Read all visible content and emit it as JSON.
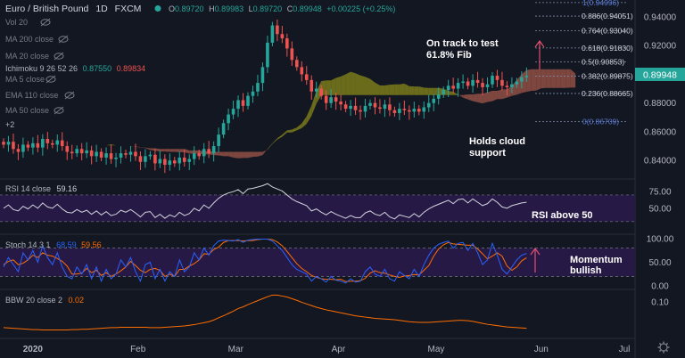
{
  "header": {
    "symbol": "Euro / British Pound",
    "interval": "1D",
    "exchange": "FXCM",
    "o_label": "O",
    "o": "0.89720",
    "h_label": "H",
    "h": "0.89983",
    "l_label": "L",
    "l": "0.89720",
    "c_label": "C",
    "c": "0.89948",
    "change": "+0.00225 (+0.25%)"
  },
  "indicators": {
    "vol": "Vol 20",
    "ma200": "MA 200 close",
    "ma20": "MA 20 close",
    "ichimoku": "Ichimoku 9 26 52 26",
    "ichimoku_v1": "0.87550",
    "ichimoku_v2": "0.89834",
    "ma5": "MA 5 close",
    "ema110": "EMA 110 close",
    "ma50": "MA 50 close",
    "collapse": "+2"
  },
  "annotations": {
    "fib_line1": "On track to test",
    "fib_line2": "61.8% Fib",
    "cloud_line1": "Holds cloud",
    "cloud_line2": "support",
    "rsi_note": "RSI above 50",
    "stoch_line1": "Momentum",
    "stoch_line2": "bullish"
  },
  "colors": {
    "background": "#131722",
    "up": "#26a69a",
    "down": "#ef5350",
    "cloud_bull": "#8a8a1a",
    "cloud_bear": "#a2574a",
    "rsi_fill": "#2a1a4a",
    "fib": "#7d8ba5",
    "arrow": "#e05070",
    "price_tag": "#26a69a"
  },
  "chart_data": [
    {
      "type": "candlestick",
      "title": "",
      "ylim": [
        0.8302,
        0.948
      ],
      "y_ticks": [
        "0.94000",
        "0.92000",
        "0.90000",
        "0.88000",
        "0.86000",
        "0.84000"
      ],
      "x_ticks": [
        "2020",
        "Feb",
        "Mar",
        "Apr",
        "May",
        "Jun",
        "Jul"
      ],
      "last_price": "0.89948",
      "close_series": [
        0.851,
        0.853,
        0.848,
        0.846,
        0.851,
        0.849,
        0.852,
        0.849,
        0.855,
        0.852,
        0.851,
        0.854,
        0.85,
        0.846,
        0.845,
        0.848,
        0.845,
        0.847,
        0.843,
        0.846,
        0.842,
        0.845,
        0.841,
        0.842,
        0.845,
        0.844,
        0.846,
        0.843,
        0.839,
        0.843,
        0.844,
        0.838,
        0.841,
        0.837,
        0.84,
        0.838,
        0.842,
        0.839,
        0.841,
        0.845,
        0.843,
        0.848,
        0.845,
        0.85,
        0.858,
        0.866,
        0.872,
        0.876,
        0.882,
        0.878,
        0.885,
        0.888,
        0.894,
        0.905,
        0.922,
        0.934,
        0.928,
        0.925,
        0.918,
        0.91,
        0.905,
        0.9,
        0.896,
        0.888,
        0.89,
        0.885,
        0.88,
        0.884,
        0.881,
        0.879,
        0.876,
        0.878,
        0.875,
        0.874,
        0.878,
        0.88,
        0.877,
        0.876,
        0.879,
        0.875,
        0.873,
        0.876,
        0.875,
        0.874,
        0.876,
        0.874,
        0.877,
        0.88,
        0.883,
        0.886,
        0.889,
        0.892,
        0.89,
        0.894,
        0.895,
        0.892,
        0.896,
        0.894,
        0.891,
        0.893,
        0.899,
        0.896,
        0.892,
        0.891,
        0.893,
        0.895,
        0.898,
        0.899
      ],
      "fibonacci": [
        {
          "level": "1(0.94996)",
          "value": 0.94996
        },
        {
          "level": "0.886(0.94051)",
          "value": 0.94051
        },
        {
          "level": "0.764(0.93040)",
          "value": 0.9304
        },
        {
          "level": "0.618(0.91830)",
          "value": 0.9183
        },
        {
          "level": "0.5(0.90853)",
          "value": 0.90853
        },
        {
          "level": "0.382(0.89875)",
          "value": 0.89875
        },
        {
          "level": "0.236(0.88665)",
          "value": 0.88665
        },
        {
          "level": "0(0.86709)",
          "value": 0.86709
        }
      ]
    },
    {
      "type": "line",
      "name": "RSI 14 close",
      "last": "59.16",
      "ylim": [
        15,
        90
      ],
      "y_ticks": [
        "75.00",
        "50.00"
      ],
      "bands": [
        70,
        30
      ],
      "values": [
        50,
        55,
        48,
        46,
        53,
        49,
        55,
        50,
        58,
        52,
        50,
        56,
        49,
        44,
        43,
        48,
        44,
        47,
        41,
        46,
        40,
        45,
        39,
        41,
        47,
        44,
        48,
        43,
        37,
        44,
        45,
        36,
        41,
        35,
        40,
        37,
        44,
        39,
        42,
        50,
        46,
        55,
        50,
        58,
        65,
        70,
        73,
        75,
        78,
        72,
        79,
        80,
        82,
        84,
        87,
        82,
        79,
        76,
        70,
        64,
        60,
        57,
        54,
        46,
        49,
        44,
        40,
        45,
        41,
        38,
        35,
        39,
        36,
        36,
        43,
        46,
        41,
        39,
        44,
        37,
        34,
        40,
        38,
        36,
        42,
        37,
        44,
        49,
        53,
        56,
        59,
        62,
        57,
        63,
        64,
        58,
        64,
        59,
        54,
        57,
        64,
        59,
        52,
        50,
        54,
        56,
        58,
        59
      ]
    },
    {
      "type": "line",
      "name": "Stoch 14 3 1",
      "k_last": "68.59",
      "d_last": "59.56",
      "ylim": [
        0,
        100
      ],
      "y_ticks": [
        "100.00",
        "50.00",
        "0.00"
      ],
      "bands": [
        80,
        20
      ],
      "k": [
        40,
        60,
        45,
        30,
        70,
        55,
        75,
        50,
        85,
        60,
        45,
        70,
        40,
        20,
        15,
        40,
        25,
        45,
        15,
        40,
        10,
        35,
        15,
        25,
        55,
        40,
        60,
        30,
        10,
        45,
        50,
        15,
        35,
        10,
        30,
        20,
        55,
        30,
        40,
        70,
        55,
        80,
        65,
        85,
        95,
        97,
        96,
        95,
        98,
        92,
        97,
        98,
        99,
        99,
        99,
        95,
        85,
        75,
        60,
        45,
        35,
        30,
        25,
        10,
        20,
        15,
        8,
        20,
        12,
        10,
        6,
        15,
        8,
        10,
        30,
        40,
        25,
        20,
        35,
        15,
        10,
        30,
        22,
        15,
        35,
        20,
        45,
        65,
        80,
        88,
        92,
        95,
        80,
        90,
        92,
        75,
        90,
        70,
        45,
        55,
        90,
        65,
        35,
        25,
        40,
        55,
        65,
        68.59
      ],
      "d": [
        45,
        52,
        55,
        45,
        48,
        55,
        65,
        60,
        70,
        65,
        63,
        58,
        52,
        42,
        25,
        25,
        27,
        37,
        28,
        33,
        22,
        28,
        20,
        25,
        32,
        40,
        52,
        43,
        33,
        28,
        35,
        37,
        33,
        20,
        25,
        20,
        35,
        35,
        42,
        47,
        55,
        68,
        67,
        77,
        82,
        92,
        96,
        96,
        96,
        95,
        96,
        96,
        98,
        99,
        99,
        98,
        93,
        85,
        73,
        60,
        47,
        37,
        30,
        22,
        18,
        15,
        14,
        14,
        13,
        14,
        9,
        10,
        10,
        11,
        16,
        27,
        32,
        28,
        27,
        23,
        20,
        18,
        21,
        22,
        24,
        23,
        33,
        43,
        63,
        78,
        87,
        92,
        89,
        88,
        87,
        86,
        86,
        78,
        68,
        57,
        63,
        70,
        63,
        42,
        33,
        40,
        53,
        59.56
      ]
    },
    {
      "type": "line",
      "name": "BBW 20 close 2",
      "last": "0.02",
      "ylim": [
        0,
        0.13
      ],
      "y_ticks": [
        "0.10"
      ],
      "values": [
        0.022,
        0.021,
        0.02,
        0.019,
        0.018,
        0.017,
        0.016,
        0.016,
        0.015,
        0.015,
        0.015,
        0.015,
        0.015,
        0.015,
        0.016,
        0.016,
        0.017,
        0.017,
        0.018,
        0.019,
        0.02,
        0.021,
        0.022,
        0.022,
        0.023,
        0.023,
        0.023,
        0.023,
        0.023,
        0.023,
        0.022,
        0.022,
        0.022,
        0.023,
        0.024,
        0.025,
        0.026,
        0.027,
        0.029,
        0.031,
        0.034,
        0.037,
        0.04,
        0.045,
        0.052,
        0.058,
        0.065,
        0.072,
        0.08,
        0.085,
        0.092,
        0.098,
        0.104,
        0.11,
        0.116,
        0.121,
        0.121,
        0.118,
        0.115,
        0.11,
        0.105,
        0.099,
        0.094,
        0.089,
        0.084,
        0.08,
        0.076,
        0.073,
        0.07,
        0.067,
        0.064,
        0.061,
        0.058,
        0.056,
        0.054,
        0.052,
        0.05,
        0.049,
        0.048,
        0.047,
        0.046,
        0.044,
        0.042,
        0.04,
        0.039,
        0.038,
        0.038,
        0.038,
        0.039,
        0.04,
        0.041,
        0.042,
        0.043,
        0.044,
        0.044,
        0.043,
        0.041,
        0.038,
        0.035,
        0.032,
        0.03,
        0.028,
        0.026,
        0.024,
        0.023,
        0.022,
        0.021,
        0.02
      ]
    }
  ]
}
